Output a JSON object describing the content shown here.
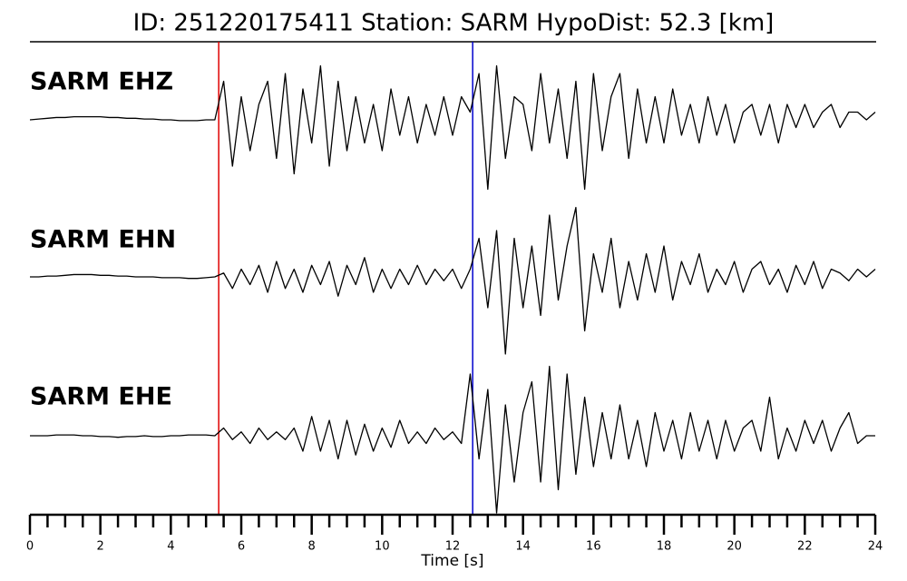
{
  "chart_data": {
    "type": "line",
    "title": "ID: 251220175411   Station: SARM   HypoDist:    52.3 [km]",
    "xlabel": "Time [s]",
    "xlim": [
      0,
      24
    ],
    "xticks": [
      0,
      2,
      4,
      6,
      8,
      10,
      12,
      14,
      16,
      18,
      20,
      22,
      24
    ],
    "minor_xticks": [
      0.5,
      1,
      1.5,
      2.5,
      3,
      3.5,
      4.5,
      5,
      5.5,
      6.5,
      7,
      7.5,
      8.5,
      9,
      9.5,
      10.5,
      11,
      11.5,
      12.5,
      13,
      13.5,
      14.5,
      15,
      15.5,
      16.5,
      17,
      17.5,
      18.5,
      19,
      19.5,
      20.5,
      21,
      21.5,
      22.5,
      23,
      23.5
    ],
    "label_color": "#4e9a06",
    "markers": [
      {
        "x": 5.36,
        "color": "#e00000"
      },
      {
        "x": 12.57,
        "color": "#0000cc"
      }
    ],
    "x": [
      0,
      0.25,
      0.5,
      0.75,
      1,
      1.25,
      1.5,
      1.75,
      2,
      2.25,
      2.5,
      2.75,
      3,
      3.25,
      3.5,
      3.75,
      4,
      4.25,
      4.5,
      4.75,
      5,
      5.25,
      5.5,
      5.75,
      6,
      6.25,
      6.5,
      6.75,
      7,
      7.25,
      7.5,
      7.75,
      8,
      8.25,
      8.5,
      8.75,
      9,
      9.25,
      9.5,
      9.75,
      10,
      10.25,
      10.5,
      10.75,
      11,
      11.25,
      11.5,
      11.75,
      12,
      12.25,
      12.5,
      12.75,
      13,
      13.25,
      13.5,
      13.75,
      14,
      14.25,
      14.5,
      14.75,
      15,
      15.25,
      15.5,
      15.75,
      16,
      16.25,
      16.5,
      16.75,
      17,
      17.25,
      17.5,
      17.75,
      18,
      18.25,
      18.5,
      18.75,
      19,
      19.25,
      19.5,
      19.75,
      20,
      20.25,
      20.5,
      20.75,
      21,
      21.25,
      21.5,
      21.75,
      22,
      22.25,
      22.5,
      22.75,
      23,
      23.25,
      23.5,
      23.75,
      24
    ],
    "series": [
      {
        "name": "SARM EHZ",
        "color": "#000000",
        "values": [
          0,
          0.01,
          0.02,
          0.03,
          0.03,
          0.04,
          0.04,
          0.04,
          0.04,
          0.03,
          0.03,
          0.02,
          0.02,
          0.01,
          0.01,
          0,
          0,
          -0.01,
          -0.01,
          -0.01,
          0,
          0,
          0.5,
          -0.6,
          0.3,
          -0.4,
          0.2,
          0.5,
          -0.5,
          0.6,
          -0.7,
          0.4,
          -0.3,
          0.7,
          -0.6,
          0.5,
          -0.4,
          0.3,
          -0.3,
          0.2,
          -0.4,
          0.4,
          -0.2,
          0.3,
          -0.3,
          0.2,
          -0.2,
          0.3,
          -0.2,
          0.3,
          0.1,
          0.6,
          -0.9,
          0.7,
          -0.5,
          0.3,
          0.2,
          -0.4,
          0.6,
          -0.3,
          0.4,
          -0.5,
          0.5,
          -0.9,
          0.6,
          -0.4,
          0.3,
          0.6,
          -0.5,
          0.4,
          -0.3,
          0.3,
          -0.3,
          0.4,
          -0.2,
          0.2,
          -0.3,
          0.3,
          -0.2,
          0.2,
          -0.3,
          0.1,
          0.2,
          -0.2,
          0.2,
          -0.3,
          0.2,
          -0.1,
          0.2,
          -0.1,
          0.1,
          0.2,
          -0.1,
          0.1,
          0.1,
          0.0,
          0.1
        ]
      },
      {
        "name": "SARM EHN",
        "color": "#000000",
        "values": [
          0,
          0,
          0.01,
          0.01,
          0.02,
          0.03,
          0.03,
          0.03,
          0.02,
          0.02,
          0.01,
          0.01,
          0,
          0,
          0,
          -0.01,
          -0.01,
          -0.01,
          -0.02,
          -0.02,
          -0.01,
          0,
          0.05,
          -0.15,
          0.1,
          -0.1,
          0.15,
          -0.2,
          0.2,
          -0.15,
          0.1,
          -0.2,
          0.15,
          -0.1,
          0.2,
          -0.25,
          0.15,
          -0.1,
          0.25,
          -0.2,
          0.1,
          -0.15,
          0.1,
          -0.1,
          0.15,
          -0.1,
          0.1,
          -0.05,
          0.1,
          -0.15,
          0.1,
          0.5,
          -0.4,
          0.6,
          -1.0,
          0.5,
          -0.4,
          0.4,
          -0.5,
          0.8,
          -0.3,
          0.4,
          0.9,
          -0.7,
          0.3,
          -0.2,
          0.5,
          -0.4,
          0.2,
          -0.3,
          0.3,
          -0.2,
          0.4,
          -0.3,
          0.2,
          -0.1,
          0.3,
          -0.2,
          0.1,
          -0.1,
          0.2,
          -0.2,
          0.1,
          0.2,
          -0.1,
          0.1,
          -0.2,
          0.15,
          -0.1,
          0.2,
          -0.15,
          0.1,
          0.05,
          -0.05,
          0.1,
          0,
          0.1
        ]
      },
      {
        "name": "SARM EHE",
        "color": "#000000",
        "values": [
          0,
          0,
          0,
          0.01,
          0.01,
          0.01,
          0,
          0,
          -0.01,
          -0.01,
          -0.02,
          -0.01,
          -0.01,
          0,
          -0.01,
          -0.01,
          0,
          0,
          0.01,
          0.01,
          0.01,
          0,
          0.1,
          -0.05,
          0.05,
          -0.1,
          0.1,
          -0.05,
          0.05,
          -0.05,
          0.1,
          -0.2,
          0.25,
          -0.2,
          0.2,
          -0.3,
          0.2,
          -0.25,
          0.15,
          -0.2,
          0.1,
          -0.15,
          0.2,
          -0.1,
          0.05,
          -0.1,
          0.1,
          -0.05,
          0.05,
          -0.1,
          0.8,
          -0.3,
          0.6,
          -1.0,
          0.4,
          -0.6,
          0.3,
          0.7,
          -0.6,
          0.9,
          -0.7,
          0.8,
          -0.5,
          0.5,
          -0.4,
          0.3,
          -0.3,
          0.4,
          -0.3,
          0.2,
          -0.4,
          0.3,
          -0.2,
          0.2,
          -0.3,
          0.3,
          -0.2,
          0.2,
          -0.3,
          0.2,
          -0.2,
          0.1,
          0.2,
          -0.2,
          0.5,
          -0.3,
          0.1,
          -0.2,
          0.2,
          -0.1,
          0.2,
          -0.2,
          0.1,
          0.3,
          -0.1,
          0.0,
          0.0
        ]
      }
    ]
  }
}
